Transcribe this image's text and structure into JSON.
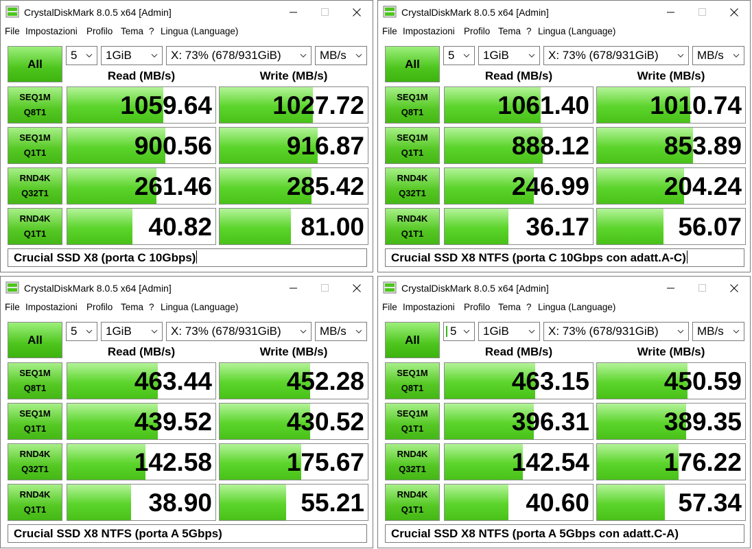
{
  "windows": [
    {
      "title": "CrystalDiskMark 8.0.5 x64 [Admin]",
      "menu": [
        "File",
        "Impostazioni",
        "Profilo",
        "Tema",
        "?",
        "Lingua (Language)"
      ],
      "all_label": "All",
      "count": "5",
      "size": "1GiB",
      "drive": "X: 73% (678/931GiB)",
      "unit": "MB/s",
      "read_header": "Read (MB/s)",
      "write_header": "Write (MB/s)",
      "rows": [
        {
          "l1": "SEQ1M",
          "l2": "Q8T1",
          "read": "1059.64",
          "write": "1027.72",
          "read_fill": 0.65,
          "write_fill": 0.63
        },
        {
          "l1": "SEQ1M",
          "l2": "Q1T1",
          "read": "900.56",
          "write": "916.87",
          "read_fill": 0.66,
          "write_fill": 0.66
        },
        {
          "l1": "RND4K",
          "l2": "Q32T1",
          "read": "261.46",
          "write": "285.42",
          "read_fill": 0.6,
          "write_fill": 0.62
        },
        {
          "l1": "RND4K",
          "l2": "Q1T1",
          "read": "40.82",
          "write": "81.00",
          "read_fill": 0.44,
          "write_fill": 0.48
        }
      ],
      "comment": "Crucial SSD X8 (porta C 10Gbps)",
      "caret": true,
      "count_cursor": false
    },
    {
      "title": "CrystalDiskMark 8.0.5 x64 [Admin]",
      "menu": [
        "File",
        "Impostazioni",
        "Profilo",
        "Tema",
        "?",
        "Lingua (Language)"
      ],
      "all_label": "All",
      "count": "5",
      "size": "1GiB",
      "drive": "X: 73% (678/931GiB)",
      "unit": "MB/s",
      "read_header": "Read (MB/s)",
      "write_header": "Write (MB/s)",
      "rows": [
        {
          "l1": "SEQ1M",
          "l2": "Q8T1",
          "read": "1061.40",
          "write": "1010.74",
          "read_fill": 0.65,
          "write_fill": 0.63
        },
        {
          "l1": "SEQ1M",
          "l2": "Q1T1",
          "read": "888.12",
          "write": "853.89",
          "read_fill": 0.66,
          "write_fill": 0.65
        },
        {
          "l1": "RND4K",
          "l2": "Q32T1",
          "read": "246.99",
          "write": "204.24",
          "read_fill": 0.6,
          "write_fill": 0.59
        },
        {
          "l1": "RND4K",
          "l2": "Q1T1",
          "read": "36.17",
          "write": "56.07",
          "read_fill": 0.43,
          "write_fill": 0.45
        }
      ],
      "comment": "Crucial SSD X8 NTFS (porta C 10Gbps con adatt.A-C)",
      "caret": true,
      "count_cursor": false
    },
    {
      "title": "CrystalDiskMark 8.0.5 x64 [Admin]",
      "menu": [
        "File",
        "Impostazioni",
        "Profilo",
        "Tema",
        "?",
        "Lingua (Language)"
      ],
      "all_label": "All",
      "count": "5",
      "size": "1GiB",
      "drive": "X: 73% (678/931GiB)",
      "unit": "MB/s",
      "read_header": "Read (MB/s)",
      "write_header": "Write (MB/s)",
      "rows": [
        {
          "l1": "SEQ1M",
          "l2": "Q8T1",
          "read": "463.44",
          "write": "452.28",
          "read_fill": 0.61,
          "write_fill": 0.61
        },
        {
          "l1": "SEQ1M",
          "l2": "Q1T1",
          "read": "439.52",
          "write": "430.52",
          "read_fill": 0.61,
          "write_fill": 0.61
        },
        {
          "l1": "RND4K",
          "l2": "Q32T1",
          "read": "142.58",
          "write": "175.67",
          "read_fill": 0.53,
          "write_fill": 0.55
        },
        {
          "l1": "RND4K",
          "l2": "Q1T1",
          "read": "38.90",
          "write": "55.21",
          "read_fill": 0.43,
          "write_fill": 0.45
        }
      ],
      "comment": "Crucial SSD X8 NTFS (porta A 5Gbps)",
      "caret": false,
      "count_cursor": false
    },
    {
      "title": "CrystalDiskMark 8.0.5 x64 [Admin]",
      "menu": [
        "File",
        "Impostazioni",
        "Profilo",
        "Tema",
        "?",
        "Lingua (Language)"
      ],
      "all_label": "All",
      "count": "5",
      "size": "1GiB",
      "drive": "X: 73% (678/931GiB)",
      "unit": "MB/s",
      "read_header": "Read (MB/s)",
      "write_header": "Write (MB/s)",
      "rows": [
        {
          "l1": "SEQ1M",
          "l2": "Q8T1",
          "read": "463.15",
          "write": "450.59",
          "read_fill": 0.61,
          "write_fill": 0.61
        },
        {
          "l1": "SEQ1M",
          "l2": "Q1T1",
          "read": "396.31",
          "write": "389.35",
          "read_fill": 0.6,
          "write_fill": 0.6
        },
        {
          "l1": "RND4K",
          "l2": "Q32T1",
          "read": "142.54",
          "write": "176.22",
          "read_fill": 0.53,
          "write_fill": 0.55
        },
        {
          "l1": "RND4K",
          "l2": "Q1T1",
          "read": "40.60",
          "write": "57.34",
          "read_fill": 0.43,
          "write_fill": 0.46
        }
      ],
      "comment": "Crucial SSD X8 NTFS (porta A 5Gbps con adatt.C-A)",
      "caret": false,
      "count_cursor": true
    }
  ],
  "colors": {
    "bar_green": "#5bd42b",
    "button_green": "#4ec61e",
    "border": "#8a8a8a"
  }
}
